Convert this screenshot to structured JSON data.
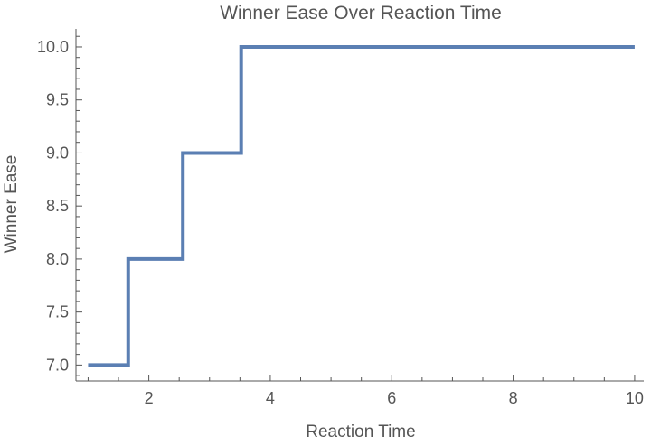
{
  "chart_data": {
    "type": "line",
    "step": true,
    "title": "Winner Ease Over Reaction Time",
    "xlabel": "Reaction Time",
    "ylabel": "Winner Ease",
    "xlim": [
      0.8,
      10.15
    ],
    "ylim": [
      6.85,
      10.17
    ],
    "xticks": [
      2,
      4,
      6,
      8,
      10
    ],
    "xtick_labels": [
      "2",
      "4",
      "6",
      "8",
      "10"
    ],
    "yticks": [
      7.0,
      7.5,
      8.0,
      8.5,
      9.0,
      9.5,
      10.0
    ],
    "ytick_labels": [
      "7.0",
      "7.5",
      "8.0",
      "8.5",
      "9.0",
      "9.5",
      "10.0"
    ],
    "grid": false,
    "series": [
      {
        "color": "#5b7fb3",
        "x": [
          1.0,
          1.66,
          1.66,
          2.56,
          2.56,
          3.52,
          3.52,
          10.0
        ],
        "y": [
          7.0,
          7.0,
          8.0,
          8.0,
          9.0,
          9.0,
          10.0,
          10.0
        ]
      }
    ]
  }
}
